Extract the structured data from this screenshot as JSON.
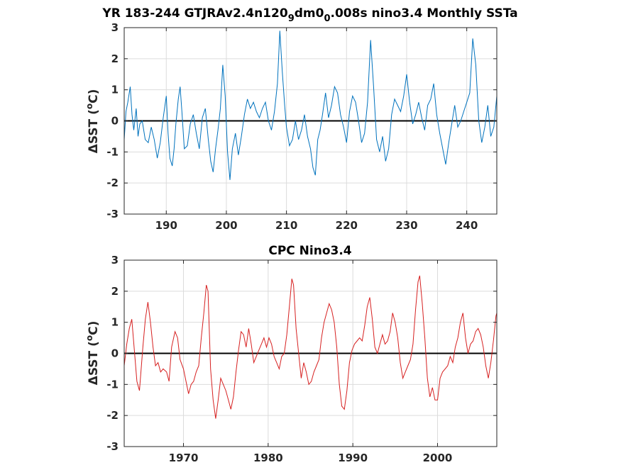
{
  "chart_data": [
    {
      "type": "line",
      "title": "YR 183-244 GTJRAv2.4n120",
      "title_parts": [
        "YR 183-244 GTJRAv2.4n120",
        "9",
        "dm0",
        "0",
        ".008s nino3.4 Monthly SSTa"
      ],
      "xlabel": "",
      "ylabel": "SST (°C)",
      "ylabel_parts": [
        "Δ",
        "SST (",
        "o",
        "C)"
      ],
      "xlim": [
        183,
        245
      ],
      "ylim": [
        -3,
        3
      ],
      "xticks": [
        190,
        200,
        210,
        220,
        230,
        240
      ],
      "yticks": [
        -3,
        -2,
        -1,
        0,
        1,
        2,
        3
      ],
      "xtick_labels": [
        "190",
        "200",
        "210",
        "220",
        "230",
        "240"
      ],
      "ytick_labels": [
        "-3",
        "-2",
        "-1",
        "0",
        "1",
        "2",
        "3"
      ],
      "grid": true,
      "zero_line": true,
      "color": "#0072BD",
      "series": [
        {
          "x": [
            183.0,
            183.3,
            183.6,
            184.0,
            184.3,
            184.6,
            185.0,
            185.3,
            185.6,
            186.0,
            186.5,
            187.0,
            187.5,
            188.0,
            188.5,
            189.0,
            189.5,
            190.0,
            190.3,
            190.6,
            191.0,
            191.3,
            191.6,
            192.0,
            192.3,
            192.6,
            193.0,
            193.5,
            194.0,
            194.5,
            195.0,
            195.5,
            196.0,
            196.5,
            197.0,
            197.4,
            197.8,
            198.2,
            198.6,
            199.0,
            199.4,
            199.8,
            200.2,
            200.6,
            201.0,
            201.5,
            202.0,
            202.5,
            203.0,
            203.5,
            204.0,
            204.5,
            205.0,
            205.5,
            206.0,
            206.5,
            207.0,
            207.5,
            208.0,
            208.5,
            208.9,
            209.3,
            209.7,
            210.0,
            210.5,
            211.0,
            211.5,
            212.0,
            212.5,
            213.0,
            213.5,
            214.0,
            214.4,
            214.8,
            215.2,
            215.6,
            216.0,
            216.5,
            217.0,
            217.5,
            218.0,
            218.5,
            219.0,
            219.5,
            220.0,
            220.5,
            221.0,
            221.5,
            222.0,
            222.5,
            223.0,
            223.5,
            224.0,
            224.5,
            225.0,
            225.5,
            226.0,
            226.5,
            227.0,
            227.5,
            228.0,
            228.5,
            229.0,
            229.5,
            230.0,
            230.5,
            231.0,
            231.5,
            232.0,
            232.5,
            233.0,
            233.5,
            234.0,
            234.5,
            235.0,
            235.5,
            236.0,
            236.5,
            237.0,
            237.5,
            238.0,
            238.5,
            239.0,
            239.5,
            240.0,
            240.5,
            241.0,
            241.5,
            242.0,
            242.5,
            243.0,
            243.5,
            244.0,
            244.5,
            245.0
          ],
          "values": [
            -0.6,
            0.3,
            0.6,
            1.1,
            0.2,
            -0.3,
            0.4,
            -0.5,
            -0.1,
            0.0,
            -0.6,
            -0.7,
            -0.2,
            -0.6,
            -1.2,
            -0.7,
            0.1,
            0.8,
            -0.4,
            -1.2,
            -1.45,
            -0.9,
            -0.1,
            0.7,
            1.1,
            0.3,
            -0.9,
            -0.8,
            -0.1,
            0.2,
            -0.4,
            -0.9,
            0.1,
            0.4,
            -0.6,
            -1.3,
            -1.65,
            -0.9,
            -0.3,
            0.4,
            1.8,
            0.8,
            -1.0,
            -1.9,
            -0.9,
            -0.4,
            -1.1,
            -0.5,
            0.2,
            0.7,
            0.4,
            0.6,
            0.3,
            0.1,
            0.4,
            0.6,
            0.0,
            -0.3,
            0.3,
            1.2,
            2.9,
            1.6,
            0.5,
            -0.2,
            -0.8,
            -0.6,
            0.0,
            -0.6,
            -0.3,
            0.2,
            -0.5,
            -0.9,
            -1.5,
            -1.75,
            -0.6,
            -0.3,
            0.2,
            0.9,
            0.1,
            0.5,
            1.1,
            0.9,
            0.2,
            -0.2,
            -0.7,
            0.3,
            0.8,
            0.6,
            0.0,
            -0.7,
            -0.4,
            0.6,
            2.6,
            1.1,
            -0.6,
            -1.0,
            -0.5,
            -1.3,
            -0.9,
            0.2,
            0.7,
            0.5,
            0.3,
            0.8,
            1.5,
            0.6,
            -0.1,
            0.2,
            0.6,
            0.1,
            -0.3,
            0.5,
            0.7,
            1.2,
            0.2,
            -0.4,
            -0.9,
            -1.4,
            -0.7,
            -0.1,
            0.5,
            -0.2,
            0.0,
            0.3,
            0.6,
            0.9,
            2.65,
            1.8,
            0.0,
            -0.7,
            -0.2,
            0.5,
            -0.5,
            -0.2,
            0.8
          ]
        }
      ]
    },
    {
      "type": "line",
      "title": "CPC Nino3.4",
      "xlabel": "",
      "ylabel": "SST (°C)",
      "ylabel_parts": [
        "Δ",
        "SST (",
        "o",
        "C)"
      ],
      "xlim": [
        1963,
        2007
      ],
      "ylim": [
        -3,
        3
      ],
      "xticks": [
        1970,
        1980,
        1990,
        2000
      ],
      "yticks": [
        -3,
        -2,
        -1,
        0,
        1,
        2,
        3
      ],
      "xtick_labels": [
        "1970",
        "1980",
        "1990",
        "2000"
      ],
      "ytick_labels": [
        "-3",
        "-2",
        "-1",
        "0",
        "1",
        "2",
        "3"
      ],
      "grid": true,
      "zero_line": true,
      "color": "#D62020",
      "series": [
        {
          "x": [
            1963.0,
            1963.3,
            1963.6,
            1963.9,
            1964.2,
            1964.5,
            1964.8,
            1965.2,
            1965.5,
            1965.8,
            1966.1,
            1966.4,
            1966.7,
            1967.0,
            1967.3,
            1967.6,
            1968.0,
            1968.3,
            1968.6,
            1969.0,
            1969.3,
            1969.6,
            1970.0,
            1970.3,
            1970.6,
            1970.9,
            1971.2,
            1971.5,
            1971.8,
            1972.1,
            1972.4,
            1972.7,
            1972.9,
            1973.2,
            1973.5,
            1973.8,
            1974.1,
            1974.4,
            1974.7,
            1975.0,
            1975.3,
            1975.6,
            1975.9,
            1976.2,
            1976.5,
            1976.8,
            1977.1,
            1977.4,
            1977.7,
            1978.0,
            1978.3,
            1978.6,
            1978.9,
            1979.2,
            1979.5,
            1979.8,
            1980.1,
            1980.4,
            1980.7,
            1981.0,
            1981.3,
            1981.6,
            1981.9,
            1982.2,
            1982.5,
            1982.8,
            1983.0,
            1983.3,
            1983.6,
            1983.9,
            1984.2,
            1984.5,
            1984.8,
            1985.1,
            1985.4,
            1985.7,
            1986.0,
            1986.3,
            1986.6,
            1986.9,
            1987.2,
            1987.5,
            1987.8,
            1988.1,
            1988.4,
            1988.7,
            1989.0,
            1989.3,
            1989.6,
            1989.9,
            1990.2,
            1990.5,
            1990.8,
            1991.1,
            1991.4,
            1991.7,
            1992.0,
            1992.3,
            1992.6,
            1992.9,
            1993.2,
            1993.5,
            1993.8,
            1994.1,
            1994.4,
            1994.7,
            1995.0,
            1995.3,
            1995.6,
            1995.9,
            1996.2,
            1996.5,
            1996.8,
            1997.1,
            1997.4,
            1997.7,
            1997.9,
            1998.2,
            1998.5,
            1998.8,
            1999.1,
            1999.4,
            1999.7,
            2000.0,
            2000.3,
            2000.6,
            2000.9,
            2001.2,
            2001.5,
            2001.8,
            2002.1,
            2002.4,
            2002.7,
            2003.0,
            2003.3,
            2003.6,
            2003.9,
            2004.2,
            2004.5,
            2004.8,
            2005.1,
            2005.4,
            2005.7,
            2006.0,
            2006.3,
            2006.6,
            2006.9,
            2007.0
          ],
          "values": [
            -0.4,
            0.3,
            0.8,
            1.1,
            0.1,
            -0.9,
            -1.2,
            0.2,
            1.1,
            1.65,
            1.0,
            0.2,
            -0.4,
            -0.3,
            -0.6,
            -0.5,
            -0.6,
            -0.9,
            0.2,
            0.7,
            0.5,
            -0.2,
            -0.5,
            -0.9,
            -1.3,
            -1.0,
            -0.9,
            -0.6,
            -0.4,
            0.5,
            1.3,
            2.2,
            2.0,
            -0.5,
            -1.5,
            -2.1,
            -1.5,
            -0.8,
            -1.0,
            -1.2,
            -1.5,
            -1.8,
            -1.4,
            -0.6,
            0.1,
            0.7,
            0.6,
            0.2,
            0.8,
            0.3,
            -0.3,
            -0.1,
            0.1,
            0.3,
            0.5,
            0.2,
            0.5,
            0.3,
            -0.1,
            -0.3,
            -0.5,
            -0.1,
            0.0,
            0.6,
            1.5,
            2.4,
            2.2,
            0.8,
            0.0,
            -0.8,
            -0.3,
            -0.6,
            -1.0,
            -0.9,
            -0.6,
            -0.4,
            -0.2,
            0.5,
            1.0,
            1.3,
            1.6,
            1.4,
            1.0,
            0.2,
            -1.0,
            -1.7,
            -1.8,
            -1.2,
            -0.3,
            0.1,
            0.3,
            0.4,
            0.5,
            0.4,
            0.9,
            1.5,
            1.8,
            1.1,
            0.2,
            0.0,
            0.3,
            0.6,
            0.3,
            0.4,
            0.7,
            1.3,
            1.0,
            0.5,
            -0.3,
            -0.8,
            -0.6,
            -0.4,
            -0.2,
            0.3,
            1.4,
            2.3,
            2.5,
            1.6,
            0.5,
            -0.8,
            -1.4,
            -1.1,
            -1.5,
            -1.5,
            -0.8,
            -0.6,
            -0.5,
            -0.4,
            -0.1,
            -0.3,
            0.2,
            0.5,
            1.0,
            1.3,
            0.5,
            0.0,
            0.3,
            0.4,
            0.7,
            0.8,
            0.6,
            0.2,
            -0.4,
            -0.8,
            -0.3,
            0.4,
            1.2,
            1.3
          ]
        }
      ]
    }
  ]
}
